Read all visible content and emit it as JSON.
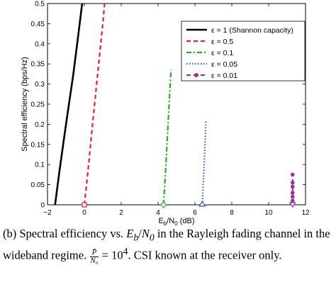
{
  "chart_data": {
    "type": "line",
    "xlabel": "E_b/N_0 (dB)",
    "ylabel": "Spectral efficiency (bps/Hz)",
    "xlim": [
      -2,
      12
    ],
    "ylim": [
      0,
      0.5
    ],
    "xticks": [
      "−2",
      "0",
      "2",
      "4",
      "6",
      "8",
      "10",
      "12"
    ],
    "yticks": [
      "0",
      "0.05",
      "0.1",
      "0.15",
      "0.2",
      "0.25",
      "0.3",
      "0.35",
      "0.4",
      "0.45",
      "0.5"
    ],
    "grid": false,
    "legend_position": "top-right",
    "series": [
      {
        "name": "ε = 1 (Shannon capacity)",
        "color": "#000000",
        "style": "solid",
        "marker": "none",
        "x": [
          -1.59,
          -1.36,
          -1.12,
          -0.87,
          -0.61,
          -0.36,
          -0.12
        ],
        "y": [
          0.0,
          0.08,
          0.16,
          0.24,
          0.32,
          0.41,
          0.5
        ]
      },
      {
        "name": "ε = 0.5",
        "color": "#e8202a",
        "style": "dashed",
        "marker": "none",
        "x": [
          0.0,
          0.2,
          0.4,
          0.6,
          0.8,
          1.0,
          1.1
        ],
        "y": [
          0.0,
          0.085,
          0.18,
          0.27,
          0.36,
          0.45,
          0.5
        ]
      },
      {
        "name": "ε = 0.1",
        "color": "#22b022",
        "style": "dashdot",
        "marker": "none",
        "x": [
          4.3,
          4.4,
          4.5,
          4.6,
          4.7
        ],
        "y": [
          0.0,
          0.08,
          0.165,
          0.25,
          0.335
        ]
      },
      {
        "name": "ε = 0.05",
        "color": "#3355cc",
        "style": "dotted",
        "marker": "none",
        "x": [
          6.4,
          6.45,
          6.5,
          6.55,
          6.6
        ],
        "y": [
          0.0,
          0.05,
          0.1,
          0.155,
          0.21
        ]
      },
      {
        "name": "ε = 0.01",
        "color": "#9b30a0",
        "style": "dashed",
        "marker": "circle",
        "x": [
          11.3,
          11.3,
          11.3,
          11.3,
          11.3,
          11.3,
          11.3
        ],
        "y": [
          0.0,
          0.01,
          0.02,
          0.03,
          0.045,
          0.055,
          0.075
        ]
      }
    ],
    "start_markers": [
      {
        "series": "ε = 0.5",
        "shape": "square",
        "x": 0.0,
        "y": 0.0,
        "color": "#e8202a"
      },
      {
        "series": "ε = 0.1",
        "shape": "diamond",
        "x": 4.3,
        "y": 0.0,
        "color": "#22b022"
      },
      {
        "series": "ε = 0.05",
        "shape": "triangle",
        "x": 6.4,
        "y": 0.0,
        "color": "#3355cc"
      },
      {
        "series": "ε = 0.01",
        "shape": "triangle-down",
        "x": 11.3,
        "y": 0.0,
        "color": "#9b30a0"
      }
    ]
  },
  "caption": {
    "part1": "(b) Spectral efficiency vs. ",
    "eb": "E",
    "eb_sub": "b",
    "slash": "/",
    "n0": "N",
    "n0_sub": "0",
    "part2": " in the Rayleigh fading channel in the wideband regime. ",
    "frac_num": "P̄",
    "frac_den": "N₀",
    "part3": " = 10",
    "exp": "4",
    "part4": ". CSI known at the receiver only."
  }
}
